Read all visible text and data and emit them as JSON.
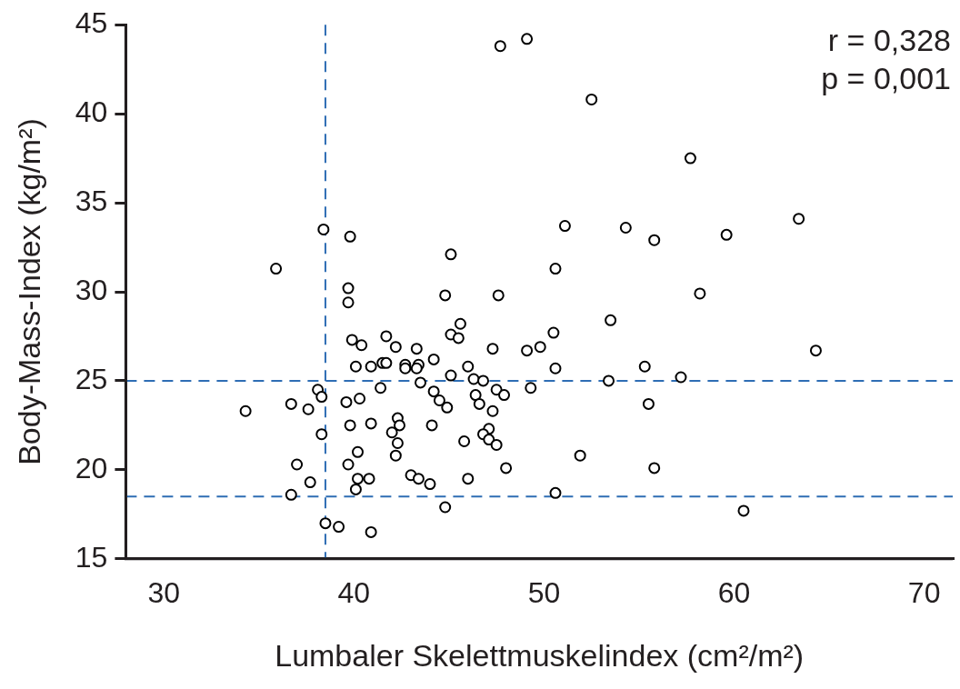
{
  "chart_data": {
    "type": "scatter",
    "xlabel": "Lumbaler Skelettmuskelindex (cm²/m²)",
    "ylabel": "Body-Mass-Index (kg/m²)",
    "xlim": [
      28,
      71.5
    ],
    "xticks": [
      30,
      40,
      50,
      60,
      70
    ],
    "ylim": [
      15,
      45
    ],
    "yticks": [
      15,
      20,
      25,
      30,
      35,
      40,
      45
    ],
    "grid": false,
    "legend": false,
    "marker": "circle",
    "annotations": [
      "r = 0,328",
      "p = 0,001"
    ],
    "ref_lines": [
      {
        "axis": "x",
        "value": 38.5,
        "color": "#2e6db4",
        "line_style": "dashed"
      },
      {
        "axis": "y",
        "value": 25,
        "color": "#2e6db4",
        "line_style": "dashed"
      },
      {
        "axis": "y",
        "value": 18.5,
        "color": "#2e6db4",
        "line_style": "dashed"
      }
    ],
    "series": [
      {
        "color": "#000000",
        "x": [
          47.7,
          49.1,
          52.5,
          57.7,
          51.1,
          54.3,
          55.8,
          59.6,
          63.4,
          50.6,
          38.4,
          39.8,
          45.1,
          35.9,
          39.7,
          39.7,
          39.9,
          40.4,
          41.7,
          42.2,
          40.1,
          40.9,
          41.5,
          41.7,
          42.7,
          42.7,
          38.1,
          38.3,
          36.7,
          37.6,
          34.3,
          39.6,
          40.3,
          41.4,
          39.8,
          40.9,
          42.3,
          42.4,
          42.0,
          42.3,
          42.2,
          40.2,
          38.3,
          37.0,
          37.7,
          36.7,
          39.7,
          40.2,
          40.8,
          40.1,
          43.0,
          38.5,
          39.2,
          40.9,
          44.8,
          47.6,
          53.5,
          43.3,
          45.6,
          45.1,
          45.5,
          47.3,
          49.1,
          49.8,
          50.5,
          50.6,
          55.3,
          53.4,
          49.3,
          55.5,
          43.4,
          43.3,
          44.2,
          43.5,
          45.1,
          46.0,
          46.3,
          46.8,
          44.2,
          44.5,
          44.9,
          46.4,
          46.6,
          47.3,
          47.5,
          47.9,
          44.1,
          45.8,
          47.1,
          46.8,
          47.1,
          47.5,
          43.4,
          44.0,
          46.0,
          48.0,
          51.9,
          55.8,
          50.6,
          44.8,
          58.2,
          64.3,
          57.2,
          60.5
        ],
        "values": [
          43.8,
          44.2,
          40.8,
          37.5,
          33.7,
          33.6,
          32.9,
          33.2,
          34.1,
          31.3,
          33.5,
          33.1,
          32.1,
          31.3,
          30.2,
          29.4,
          27.3,
          27.0,
          27.5,
          26.9,
          25.8,
          25.8,
          26.0,
          26.0,
          25.9,
          25.7,
          24.5,
          24.1,
          23.7,
          23.4,
          23.3,
          23.8,
          24.0,
          24.6,
          22.5,
          22.6,
          22.9,
          22.5,
          22.1,
          21.5,
          20.8,
          21.0,
          22.0,
          20.3,
          19.3,
          18.6,
          20.3,
          19.5,
          19.5,
          18.9,
          19.7,
          17.0,
          16.8,
          16.5,
          29.8,
          29.8,
          28.4,
          26.8,
          28.2,
          27.6,
          27.4,
          26.8,
          26.7,
          26.9,
          27.7,
          25.7,
          25.8,
          25.0,
          24.6,
          23.7,
          25.9,
          25.7,
          26.2,
          24.9,
          25.3,
          25.8,
          25.1,
          25.0,
          24.4,
          23.9,
          23.5,
          24.2,
          23.7,
          23.3,
          24.5,
          24.2,
          22.5,
          21.6,
          22.3,
          22.0,
          21.7,
          21.4,
          19.5,
          19.2,
          19.5,
          20.1,
          20.8,
          20.1,
          18.7,
          17.9,
          29.9,
          26.7,
          25.2,
          17.7
        ]
      }
    ]
  }
}
